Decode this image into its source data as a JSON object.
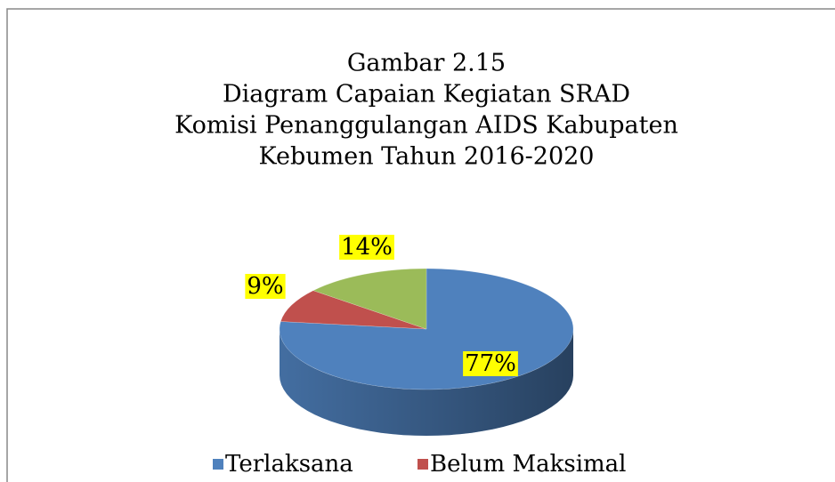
{
  "chart_data": {
    "type": "pie",
    "title": [
      "Gambar 2.15",
      "Diagram Capaian Kegiatan SRAD",
      "Komisi Penanggulangan AIDS Kabupaten",
      "Kebumen Tahun 2016-2020"
    ],
    "categories": [
      "Terlaksana",
      "Belum Maksimal",
      null
    ],
    "values": [
      77,
      9,
      14
    ],
    "value_labels": [
      "77%",
      "9%",
      "14%"
    ],
    "colors": [
      "#4f81bd",
      "#c0504d",
      "#9bbb59"
    ],
    "legend": "bottom"
  }
}
